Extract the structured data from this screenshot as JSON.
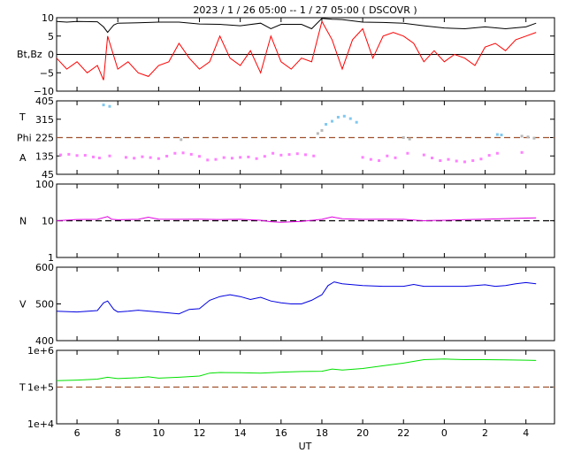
{
  "title": "2023 /   1 / 26   05:00 --   1 / 27    05:00 ( DSCOVR )",
  "xlabel": "UT",
  "x_ticks": [
    "6",
    "8",
    "10",
    "12",
    "14",
    "16",
    "18",
    "20",
    "22",
    "0",
    "2",
    "4"
  ],
  "colors": {
    "bt": "#000000",
    "bz": "#ff0000",
    "phi_toward": "#ff80ff",
    "phi_away": "#80c8f0",
    "phi_other": "#b8b8b8",
    "density": "#e000e0",
    "speed": "#0000e0",
    "temperature": "#00e000",
    "ref_line": "#a0522d"
  },
  "chart_data": [
    {
      "type": "line",
      "panel": "magnetic",
      "ylabel": "Bt,Bz",
      "ylim": [
        -10,
        10
      ],
      "yticks": [
        "10",
        "5",
        "0",
        "−5",
        "−10"
      ],
      "x_range_hours": [
        5.0,
        29.0
      ],
      "series": [
        {
          "name": "Bt",
          "color": "#000000",
          "x": [
            5.0,
            5.5,
            6,
            7,
            7.3,
            7.5,
            7.8,
            8,
            9,
            10,
            11,
            12,
            13,
            14,
            15,
            15.5,
            16,
            17,
            17.5,
            18,
            18.5,
            19,
            20,
            21,
            22,
            23,
            24,
            25,
            26,
            27,
            28,
            28.5
          ],
          "y": [
            9.0,
            8.8,
            9.0,
            8.9,
            7.5,
            6.0,
            8.0,
            8.5,
            8.6,
            8.8,
            8.8,
            8.3,
            8.2,
            7.8,
            8.5,
            7.0,
            8.2,
            8.2,
            7.0,
            9.8,
            9.6,
            9.5,
            8.8,
            8.7,
            8.5,
            7.8,
            7.2,
            7.0,
            7.5,
            7.0,
            7.5,
            8.5
          ]
        },
        {
          "name": "Bz",
          "color": "#ff0000",
          "x": [
            5.0,
            5.5,
            6,
            6.5,
            7,
            7.3,
            7.5,
            8,
            8.5,
            9,
            9.5,
            10,
            10.5,
            11,
            11.5,
            12,
            12.5,
            13,
            13.5,
            14,
            14.5,
            15,
            15.5,
            16,
            16.5,
            17,
            17.5,
            18,
            18.5,
            19,
            19.5,
            20,
            20.5,
            21,
            21.5,
            22,
            22.5,
            23,
            23.5,
            24,
            24.5,
            25,
            25.5,
            26,
            26.5,
            27,
            27.5,
            28,
            28.5
          ],
          "y": [
            -1,
            -4,
            -2,
            -5,
            -3,
            -7,
            5,
            -4,
            -2,
            -5,
            -6,
            -3,
            -2,
            3,
            -1,
            -4,
            -2,
            5,
            -1,
            -3,
            1,
            -5,
            5,
            -2,
            -4,
            -1,
            -2,
            9,
            4,
            -4,
            4,
            7,
            -1,
            5,
            6,
            5,
            3,
            -2,
            1,
            -2,
            0,
            -1,
            -3,
            2,
            3,
            1,
            4,
            5,
            6
          ]
        }
      ]
    },
    {
      "type": "scatter",
      "panel": "phi",
      "ylabel_lines": [
        "T",
        "Phi",
        "A"
      ],
      "ylim": [
        45,
        405
      ],
      "yticks": [
        "405",
        "315",
        "225",
        "135",
        "45"
      ],
      "ref_line": 225,
      "series": [
        {
          "name": "toward",
          "color": "#ff80ff",
          "x": [
            5.2,
            5.6,
            6,
            6.4,
            6.8,
            7.1,
            7.6,
            8.4,
            8.8,
            9.2,
            9.6,
            10,
            10.4,
            10.8,
            11.2,
            11.6,
            12,
            12.4,
            12.8,
            13.2,
            13.6,
            14,
            14.4,
            14.8,
            15.2,
            15.6,
            16,
            16.4,
            16.8,
            17.2,
            17.6,
            20.0,
            20.4,
            20.8,
            21.2,
            21.6,
            22.2,
            23,
            23.4,
            23.8,
            24.2,
            24.6,
            25,
            25.4,
            25.8,
            26.2,
            26.6,
            27.8
          ],
          "y": [
            140,
            143,
            137,
            138,
            130,
            125,
            135,
            128,
            124,
            131,
            127,
            122,
            134,
            148,
            150,
            143,
            133,
            115,
            118,
            127,
            124,
            128,
            130,
            122,
            133,
            148,
            139,
            142,
            146,
            141,
            135,
            128,
            118,
            112,
            135,
            126,
            148,
            140,
            125,
            112,
            118,
            110,
            106,
            112,
            120,
            138,
            148,
            152
          ]
        },
        {
          "name": "away",
          "color": "#80c8f0",
          "x": [
            7.3,
            7.6,
            18.2,
            18.5,
            18.8,
            19.1,
            19.4,
            19.7,
            26.6,
            26.8
          ],
          "y": [
            385,
            378,
            290,
            305,
            325,
            330,
            318,
            300,
            240,
            238
          ]
        },
        {
          "name": "other",
          "color": "#b8b8b8",
          "x": [
            11.1,
            17.8,
            18,
            22.0,
            22.3,
            27.8,
            28.1,
            28.4
          ],
          "y": [
            215,
            245,
            260,
            225,
            218,
            232,
            228,
            222
          ]
        }
      ]
    },
    {
      "type": "line",
      "panel": "density",
      "ylabel": "N",
      "yscale": "log",
      "ylim": [
        1,
        100
      ],
      "yticks": [
        "100",
        "10",
        "1"
      ],
      "ref_line": 10,
      "series": [
        {
          "name": "N",
          "color": "#e000e0",
          "x": [
            5.0,
            6,
            7,
            7.5,
            7.7,
            8,
            9,
            9.5,
            10,
            11,
            12,
            13,
            14,
            15,
            15.5,
            16,
            17,
            18,
            18.5,
            19,
            20,
            21,
            22,
            23,
            23.5,
            24,
            25,
            26,
            27,
            28,
            28.5
          ],
          "y": [
            10.0,
            10.8,
            10.9,
            13.0,
            11.0,
            10.6,
            10.9,
            12.5,
            11.0,
            10.9,
            11.0,
            10.8,
            10.9,
            10.3,
            9.4,
            9.1,
            9.6,
            10.9,
            12.8,
            11.3,
            10.9,
            11.0,
            10.9,
            10.0,
            10.2,
            10.3,
            10.7,
            11.0,
            11.4,
            11.8,
            12.0
          ]
        }
      ]
    },
    {
      "type": "line",
      "panel": "speed",
      "ylabel": "V",
      "ylim": [
        400,
        600
      ],
      "yticks": [
        "600",
        "500",
        "400"
      ],
      "series": [
        {
          "name": "V",
          "color": "#0000e0",
          "x": [
            5.0,
            6,
            7,
            7.3,
            7.5,
            7.8,
            8,
            8.5,
            9,
            10,
            11,
            11.5,
            12,
            12.5,
            13,
            13.5,
            14,
            14.5,
            15,
            15.5,
            16,
            16.5,
            17,
            17.5,
            18,
            18.3,
            18.6,
            19,
            20,
            21,
            22,
            22.5,
            23,
            24,
            25,
            26,
            26.5,
            27,
            27.5,
            28,
            28.5
          ],
          "y": [
            480,
            478,
            482,
            503,
            508,
            485,
            478,
            480,
            483,
            478,
            473,
            485,
            487,
            510,
            520,
            525,
            520,
            512,
            518,
            508,
            503,
            500,
            500,
            510,
            525,
            550,
            560,
            555,
            550,
            548,
            548,
            553,
            548,
            548,
            548,
            552,
            548,
            550,
            555,
            558,
            555
          ]
        }
      ]
    },
    {
      "type": "line",
      "panel": "temperature",
      "ylabel": "T",
      "yscale": "log",
      "ylim": [
        10000,
        1000000
      ],
      "yticks": [
        "1e+6",
        "1e+5",
        "1e+4"
      ],
      "ref_line": 100000,
      "series": [
        {
          "name": "T",
          "color": "#00e000",
          "x": [
            5.0,
            6,
            7,
            7.5,
            8,
            9,
            9.5,
            10,
            11,
            12,
            12.5,
            13,
            14,
            15,
            16,
            17,
            18,
            18.5,
            19,
            20,
            21,
            22,
            23,
            24,
            25,
            26,
            27,
            28,
            28.5
          ],
          "y": [
            150000,
            155000,
            165000,
            185000,
            170000,
            180000,
            190000,
            175000,
            185000,
            200000,
            240000,
            250000,
            245000,
            240000,
            255000,
            265000,
            270000,
            310000,
            290000,
            320000,
            380000,
            450000,
            560000,
            580000,
            560000,
            560000,
            550000,
            540000,
            530000
          ]
        }
      ]
    }
  ]
}
